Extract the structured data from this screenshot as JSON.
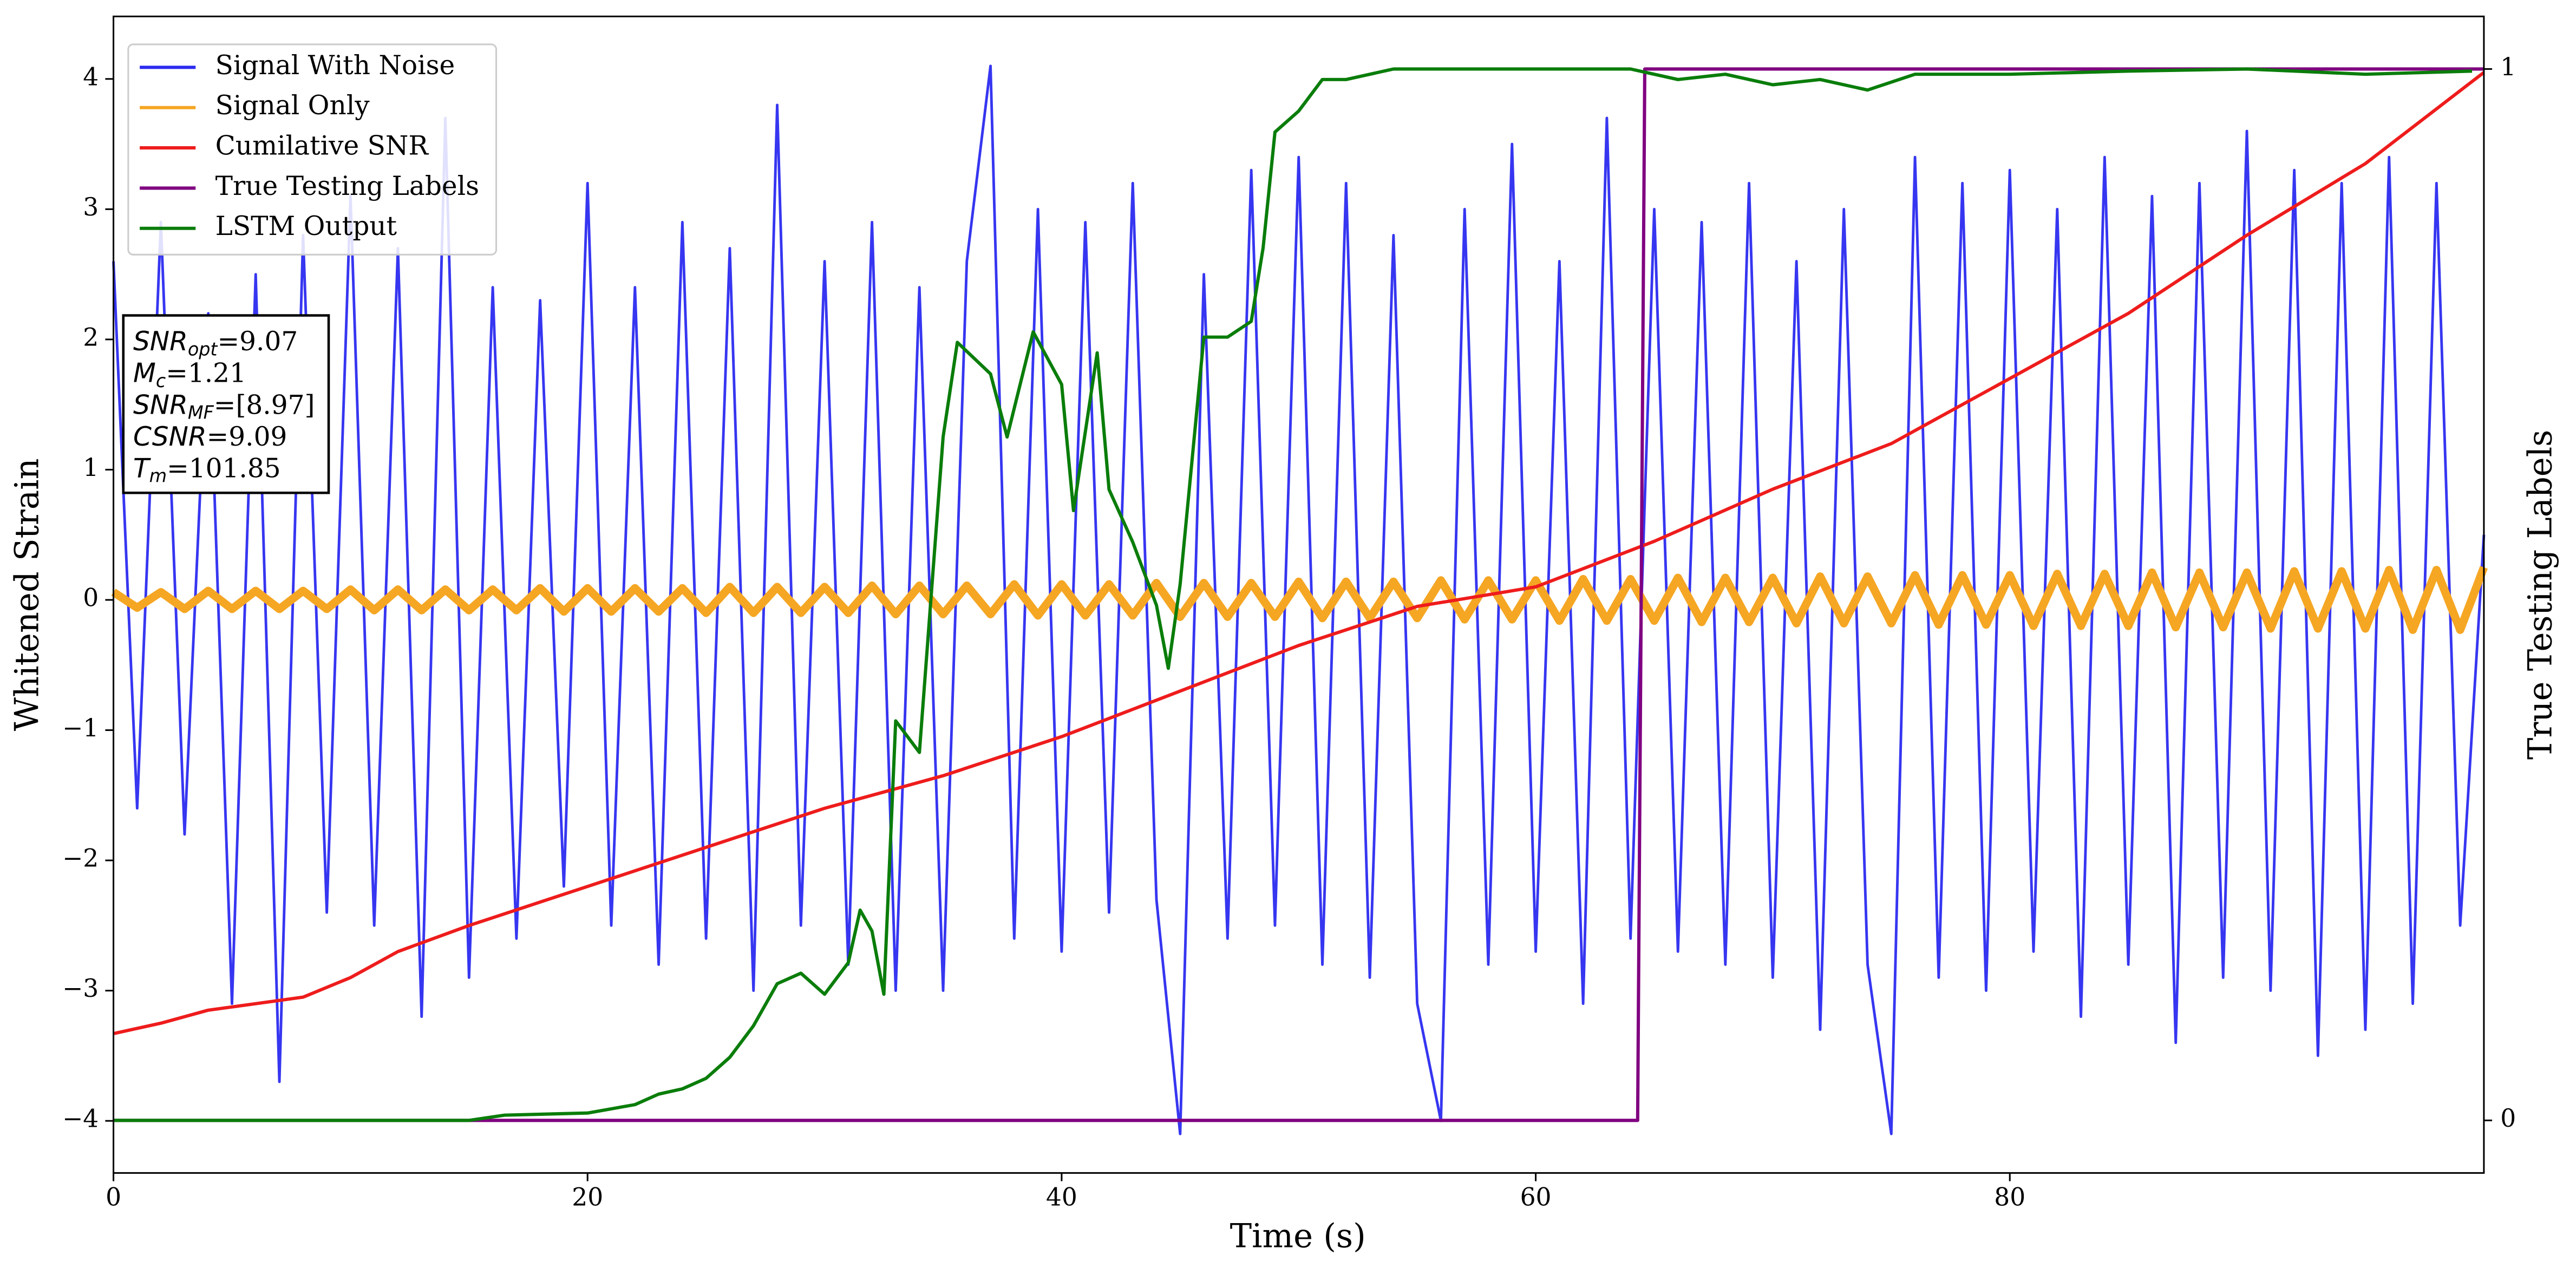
{
  "chart_data": {
    "type": "line",
    "xlabel": "Time (s)",
    "ylabel": "Whitened Strain",
    "y2label": "True Testing Labels",
    "xlim": [
      0,
      100
    ],
    "ylim": [
      -4.4,
      4.48
    ],
    "y2lim": [
      -0.05,
      1.05
    ],
    "xticks": [
      0,
      20,
      40,
      60,
      80
    ],
    "yticks": [
      {
        "value": -4,
        "label": "−4"
      },
      {
        "value": -3,
        "label": "−3"
      },
      {
        "value": -2,
        "label": "−2"
      },
      {
        "value": -1,
        "label": "−1"
      },
      0,
      1,
      2,
      3,
      4
    ],
    "y2ticks": [
      0,
      1
    ],
    "legend": "upper left",
    "x": [
      0,
      1,
      2,
      3,
      4,
      5,
      6,
      7,
      8,
      9,
      10,
      11,
      12,
      13,
      14,
      15,
      16,
      17,
      18,
      19,
      20,
      21,
      22,
      23,
      24,
      25,
      26,
      27,
      28,
      29,
      30,
      31,
      32,
      33,
      34,
      35,
      36,
      37,
      38,
      39,
      40,
      41,
      42,
      43,
      44,
      45,
      46,
      47,
      48,
      49,
      50,
      51,
      52,
      53,
      54,
      55,
      56,
      57,
      58,
      59,
      60,
      61,
      62,
      63,
      64,
      65,
      66,
      67,
      68,
      69,
      70,
      71,
      72,
      73,
      74,
      75,
      76,
      77,
      78,
      79,
      80,
      81,
      82,
      83,
      84,
      85,
      86,
      87,
      88,
      89,
      90,
      91,
      92,
      93,
      94,
      95,
      96,
      97,
      98,
      99,
      100
    ],
    "series": [
      {
        "name": "Signal With Noise",
        "color": "#2b2bf0",
        "values": [
          2.6,
          -1.6,
          2.9,
          -1.8,
          2.2,
          -3.1,
          2.5,
          -3.7,
          2.8,
          -2.4,
          3.1,
          -2.5,
          2.7,
          -3.2,
          3.7,
          -2.9,
          2.4,
          -2.6,
          2.3,
          -2.2,
          3.2,
          -2.5,
          2.4,
          -2.8,
          2.9,
          -2.6,
          2.7,
          -3.0,
          3.8,
          -2.5,
          2.6,
          -2.8,
          2.9,
          -3.0,
          2.4,
          -3.0,
          2.6,
          4.1,
          -2.6,
          3.0,
          -2.7,
          2.9,
          -2.4,
          3.2,
          -2.3,
          -4.1,
          2.5,
          -2.6,
          3.3,
          -2.5,
          3.4,
          -2.8,
          3.2,
          -2.9,
          2.8,
          -3.1,
          -4.0,
          3.0,
          -2.8,
          3.5,
          -2.7,
          2.6,
          -3.1,
          3.7,
          -2.6,
          3.0,
          -2.7,
          2.9,
          -2.8,
          3.2,
          -2.9,
          2.6,
          -3.3,
          3.0,
          -2.8,
          -4.1,
          3.4,
          -2.9,
          3.2,
          -3.0,
          3.3,
          -2.7,
          3.0,
          -3.2,
          3.4,
          -2.8,
          3.1,
          -3.4,
          3.2,
          -2.9,
          3.6,
          -3.0,
          3.3,
          -3.5,
          3.2,
          -3.3,
          3.4,
          -3.1,
          3.2,
          -2.5,
          0.5
        ]
      },
      {
        "name": "Signal Only",
        "color": "#f5a623",
        "values": [
          0.06,
          -0.06,
          0.06,
          -0.07,
          0.07,
          -0.07,
          0.07,
          -0.07,
          0.07,
          -0.07,
          0.08,
          -0.08,
          0.08,
          -0.08,
          0.08,
          -0.08,
          0.08,
          -0.08,
          0.09,
          -0.09,
          0.09,
          -0.09,
          0.09,
          -0.09,
          0.09,
          -0.1,
          0.1,
          -0.1,
          0.1,
          -0.1,
          0.1,
          -0.1,
          0.11,
          -0.11,
          0.11,
          -0.11,
          0.11,
          -0.11,
          0.12,
          -0.12,
          0.12,
          -0.12,
          0.12,
          -0.12,
          0.13,
          -0.13,
          0.13,
          -0.13,
          0.13,
          -0.13,
          0.14,
          -0.14,
          0.14,
          -0.14,
          0.14,
          -0.14,
          0.15,
          -0.15,
          0.15,
          -0.15,
          0.15,
          -0.16,
          0.16,
          -0.16,
          0.16,
          -0.16,
          0.17,
          -0.17,
          0.17,
          -0.17,
          0.17,
          -0.18,
          0.18,
          -0.18,
          0.18,
          -0.18,
          0.19,
          -0.19,
          0.19,
          -0.19,
          0.19,
          -0.2,
          0.2,
          -0.2,
          0.2,
          -0.2,
          0.21,
          -0.21,
          0.21,
          -0.21,
          0.21,
          -0.22,
          0.22,
          -0.22,
          0.22,
          -0.22,
          0.23,
          -0.23,
          0.23,
          -0.23,
          0.25
        ]
      },
      {
        "name": "Cumilative SNR",
        "color": "#ee1c1c",
        "x": [
          0,
          2,
          4,
          6,
          8,
          10,
          12,
          15,
          20,
          25,
          30,
          35,
          40,
          45,
          50,
          55,
          60,
          65,
          70,
          75,
          80,
          85,
          90,
          95,
          100
        ],
        "values": [
          -3.33,
          -3.25,
          -3.15,
          -3.1,
          -3.05,
          -2.9,
          -2.7,
          -2.5,
          -2.2,
          -1.9,
          -1.6,
          -1.35,
          -1.05,
          -0.7,
          -0.35,
          -0.05,
          0.1,
          0.45,
          0.85,
          1.2,
          1.7,
          2.2,
          2.8,
          3.35,
          4.05
        ]
      },
      {
        "name": "True Testing Labels",
        "color": "#800080",
        "axis": "y2",
        "x": [
          0,
          64.3,
          64.6,
          100
        ],
        "values": [
          0,
          0,
          1,
          1
        ]
      },
      {
        "name": "LSTM Output",
        "color": "#0a7d0a",
        "axis": "y2",
        "x": [
          0,
          15,
          16.5,
          20,
          22,
          23,
          24,
          25,
          26,
          27,
          28,
          29,
          29.5,
          30,
          31,
          31.5,
          32,
          32.5,
          33,
          34,
          35,
          35.6,
          37,
          37.7,
          38.8,
          40,
          40.5,
          41.5,
          42,
          43,
          44,
          44.5,
          45,
          46,
          47,
          48,
          48.5,
          49,
          50,
          51,
          52,
          54,
          56,
          58,
          60,
          62,
          64,
          66,
          68,
          70,
          72,
          74,
          76,
          80,
          85,
          90,
          95,
          99.5
        ],
        "values": [
          0,
          0,
          0.005,
          0.007,
          0.015,
          0.025,
          0.03,
          0.04,
          0.06,
          0.09,
          0.13,
          0.14,
          0.13,
          0.12,
          0.15,
          0.2,
          0.18,
          0.12,
          0.38,
          0.35,
          0.65,
          0.74,
          0.71,
          0.65,
          0.75,
          0.7,
          0.58,
          0.73,
          0.6,
          0.55,
          0.49,
          0.43,
          0.51,
          0.745,
          0.745,
          0.76,
          0.83,
          0.94,
          0.96,
          0.99,
          0.99,
          1.0,
          1.0,
          1.0,
          1.0,
          1.0,
          1.0,
          0.99,
          0.995,
          0.985,
          0.99,
          0.98,
          0.995,
          0.995,
          0.998,
          1.0,
          0.995,
          0.998
        ]
      }
    ],
    "annotation": [
      {
        "name": "SNR",
        "sub": "opt",
        "value": "=9.07"
      },
      {
        "name": "M",
        "sub": "c",
        "value": "=1.21"
      },
      {
        "name": "SNR",
        "sub": "MF",
        "value": "=[8.97]"
      },
      {
        "name": "CSNR",
        "value": "=9.09"
      },
      {
        "name": "T",
        "sub": "m",
        "value": "=101.85"
      }
    ]
  }
}
